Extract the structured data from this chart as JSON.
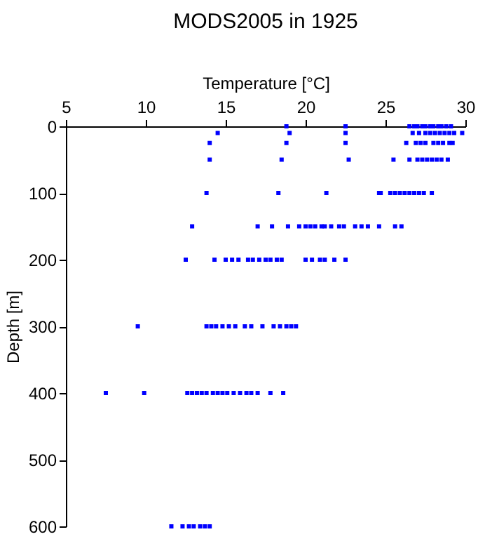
{
  "chart_data": {
    "type": "scatter",
    "title": "MODS2005 in 1925",
    "xlabel": "Temperature [°C]",
    "ylabel": "Depth [m]",
    "xlim": [
      5,
      30
    ],
    "xticks": [
      5,
      10,
      15,
      20,
      25,
      30
    ],
    "ylim": [
      600,
      0
    ],
    "yticks": [
      0,
      100,
      200,
      300,
      400,
      500,
      600
    ],
    "grid": false,
    "marker": "square",
    "series": [
      {
        "color": "#0000ff",
        "x": [
          18.8,
          22.5,
          26.5,
          26.8,
          27.0,
          27.3,
          27.5,
          27.8,
          28.0,
          28.3,
          28.5,
          28.8,
          29.1,
          14.5,
          19.0,
          22.5,
          26.7,
          27.1,
          27.5,
          27.8,
          28.1,
          28.4,
          28.7,
          29.0,
          29.3,
          29.8,
          14.0,
          18.8,
          22.5,
          26.3,
          26.9,
          27.2,
          27.5,
          28.0,
          28.3,
          28.6,
          29.0,
          29.2,
          14.0,
          18.5,
          22.7,
          25.5,
          26.5,
          27.0,
          27.3,
          27.6,
          27.9,
          28.2,
          28.5,
          28.9,
          13.8,
          18.3,
          21.3,
          24.6,
          24.7,
          25.3,
          25.6,
          25.9,
          26.2,
          26.5,
          26.8,
          27.1,
          27.4,
          27.9,
          12.9,
          17.0,
          17.9,
          18.9,
          19.6,
          20.0,
          20.3,
          20.6,
          21.0,
          21.2,
          21.6,
          22.1,
          22.4,
          23.1,
          23.5,
          23.9,
          24.6,
          25.6,
          26.0,
          12.5,
          14.3,
          15.0,
          15.4,
          15.8,
          16.4,
          16.7,
          17.1,
          17.5,
          17.8,
          18.2,
          18.5,
          20.0,
          20.4,
          20.9,
          21.2,
          21.8,
          22.5,
          9.5,
          13.8,
          14.1,
          14.4,
          14.8,
          15.2,
          15.6,
          16.2,
          16.6,
          17.3,
          18.0,
          18.4,
          18.8,
          19.1,
          19.4,
          7.5,
          9.9,
          12.6,
          12.9,
          13.2,
          13.5,
          13.8,
          14.2,
          14.5,
          14.8,
          15.1,
          15.5,
          15.9,
          16.3,
          16.6,
          17.0,
          17.8,
          18.6,
          11.6,
          12.3,
          12.7,
          13.0,
          13.4,
          13.7,
          14.0
        ],
        "values": [
          0,
          0,
          0,
          0,
          0,
          0,
          0,
          0,
          0,
          0,
          0,
          0,
          0,
          10,
          10,
          10,
          10,
          10,
          10,
          10,
          10,
          10,
          10,
          10,
          10,
          10,
          25,
          25,
          25,
          25,
          25,
          25,
          25,
          25,
          25,
          25,
          25,
          25,
          50,
          50,
          50,
          50,
          50,
          50,
          50,
          50,
          50,
          50,
          50,
          50,
          100,
          100,
          100,
          100,
          100,
          100,
          100,
          100,
          100,
          100,
          100,
          100,
          100,
          100,
          150,
          150,
          150,
          150,
          150,
          150,
          150,
          150,
          150,
          150,
          150,
          150,
          150,
          150,
          150,
          150,
          150,
          150,
          150,
          200,
          200,
          200,
          200,
          200,
          200,
          200,
          200,
          200,
          200,
          200,
          200,
          200,
          200,
          200,
          200,
          200,
          200,
          300,
          300,
          300,
          300,
          300,
          300,
          300,
          300,
          300,
          300,
          300,
          300,
          300,
          300,
          300,
          400,
          400,
          400,
          400,
          400,
          400,
          400,
          400,
          400,
          400,
          400,
          400,
          400,
          400,
          400,
          400,
          400,
          400,
          600,
          600,
          600,
          600,
          600,
          600,
          600
        ]
      }
    ]
  }
}
